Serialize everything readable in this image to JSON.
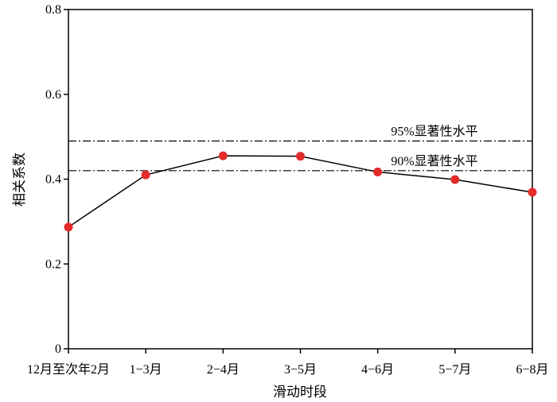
{
  "chart_data": {
    "type": "line",
    "title": "",
    "xlabel": "滑动时段",
    "ylabel": "相关系数",
    "categories": [
      "12月至次年2月",
      "1−3月",
      "2−4月",
      "3−5月",
      "4−6月",
      "5−7月",
      "6−8月"
    ],
    "series": [
      {
        "values": [
          0.287,
          0.41,
          0.455,
          0.454,
          0.417,
          0.399,
          0.369
        ]
      }
    ],
    "ylim": [
      0,
      0.8
    ],
    "yticks": [
      "0",
      "0.2",
      "0.4",
      "0.6",
      "0.8"
    ],
    "grid": false,
    "reference_lines": [
      {
        "label": "95%显著性水平",
        "value": 0.49
      },
      {
        "label": "90%显著性水平",
        "value": 0.42
      }
    ],
    "marker_color": "#e32b2b",
    "line_color": "#000000"
  }
}
